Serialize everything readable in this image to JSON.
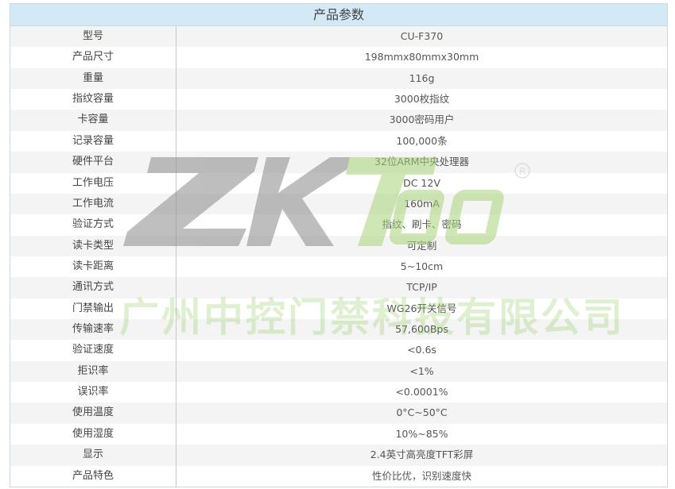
{
  "title": "产品参数",
  "rows": [
    {
      "label": "型号",
      "value": "CU-F370"
    },
    {
      "label": "产品尺寸",
      "value": "198mmx80mmx30mm"
    },
    {
      "label": "重量",
      "value": "116g"
    },
    {
      "label": "指纹容量",
      "value": "3000枚指纹"
    },
    {
      "label": "卡容量",
      "value": "3000密码用户"
    },
    {
      "label": "记录容量",
      "value": "100,000条"
    },
    {
      "label": "硬件平台",
      "value": "32位ARM中央处理器"
    },
    {
      "label": "工作电压",
      "value": "DC 12V"
    },
    {
      "label": "工作电流",
      "value": "160mA"
    },
    {
      "label": "验证方式",
      "value": "指纹、刷卡、密码"
    },
    {
      "label": "读卡类型",
      "value": "可定制"
    },
    {
      "label": "读卡距离",
      "value": "5~10cm"
    },
    {
      "label": "通讯方式",
      "value": "TCP/IP"
    },
    {
      "label": "门禁输出",
      "value": "WG26开关信号"
    },
    {
      "label": "传输速率",
      "value": "57,600Bps"
    },
    {
      "label": "验证速度",
      "value": "<0.6s"
    },
    {
      "label": "拒识率",
      "value": "<1%"
    },
    {
      "label": "误识率",
      "value": "<0.0001%"
    },
    {
      "label": "使用温度",
      "value": "0°C~50°C"
    },
    {
      "label": "使用湿度",
      "value": "10%~85%"
    },
    {
      "label": "显示",
      "value": "2.4英寸高亮度TFT彩屏"
    },
    {
      "label": "产品特色",
      "value": "性价比优，识别速度快"
    }
  ],
  "watermark": {
    "logo": "ZKTeco",
    "company": "广州中控门禁科技有限公司",
    "colors": {
      "gray": "#9a9a9a",
      "green": "#a8d27a"
    }
  }
}
